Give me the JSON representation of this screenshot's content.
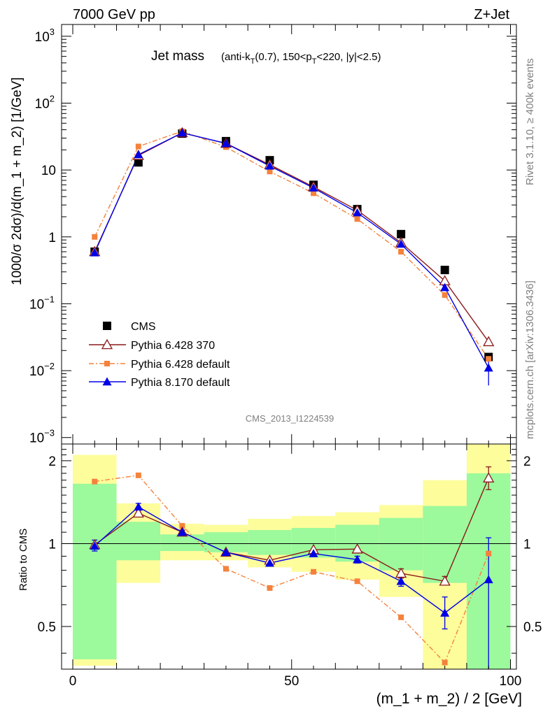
{
  "header": {
    "energy": "7000 GeV pp",
    "process": "Z+Jet"
  },
  "side_texts": {
    "rivet": "Rivet 3.1.10, ≥ 400k events",
    "mcplots": "mcplots.cern.ch [arXiv:1306.3436]"
  },
  "analysis_id": "CMS_2013_I1224539",
  "colors": {
    "cms": "#000000",
    "p6_370": "#8b1a1a",
    "p6_default": "#f5823c",
    "p8_default": "#0000e6",
    "band_inner": "#9cf99c",
    "band_outer": "#fdfd9c"
  },
  "chart_data": [
    {
      "type": "line",
      "title_main": "Jet mass",
      "title_sub": {
        "a": "(anti-k",
        "a_sub": "T",
        "b": "(0.7), 150<p",
        "b_sub": "T",
        "c": "<220, |y|<2.5)"
      },
      "ylabel": "1000/σ 2dσ)/d(m_1 + m_2) [1/GeV]",
      "xlim": [
        0,
        100
      ],
      "ylim": [
        0.0008,
        1500
      ],
      "log_y": true,
      "y_ticks": [
        {
          "value": 0.001,
          "base": "10",
          "exp": "−3"
        },
        {
          "value": 0.01,
          "base": "10",
          "exp": "−2"
        },
        {
          "value": 0.1,
          "base": "10",
          "exp": "−1"
        },
        {
          "value": 1,
          "base": "1",
          "exp": ""
        },
        {
          "value": 10,
          "base": "10",
          "exp": ""
        },
        {
          "value": 100,
          "base": "10",
          "exp": "2"
        },
        {
          "value": 1000,
          "base": "10",
          "exp": "3"
        }
      ],
      "x": [
        5,
        15,
        25,
        35,
        45,
        55,
        65,
        75,
        85,
        95
      ],
      "series": [
        {
          "name": "CMS",
          "key": "cms",
          "values": [
            0.6,
            13,
            35,
            27,
            14,
            6,
            2.6,
            1.1,
            0.32,
            0.016
          ]
        },
        {
          "name": "Pythia 6.428 370",
          "key": "p6_370",
          "values": [
            0.6,
            16.5,
            36,
            25,
            12,
            5.6,
            2.5,
            0.82,
            0.22,
            0.027
          ]
        },
        {
          "name": "Pythia 6.428 default",
          "key": "p6_default",
          "values": [
            1.0,
            22.5,
            38,
            22,
            9.5,
            4.5,
            1.85,
            0.6,
            0.135,
            0.015
          ]
        },
        {
          "name": "Pythia 8.170 default",
          "key": "p8_default",
          "values": [
            0.58,
            17,
            36,
            25,
            11.5,
            5.4,
            2.3,
            0.78,
            0.175,
            0.011
          ],
          "err_last": [
            0.006,
            0.016
          ]
        }
      ],
      "legend_position": "lower-left"
    },
    {
      "type": "line",
      "ylabel": "Ratio to CMS",
      "xlabel": "(m_1 + m_2) / 2 [GeV]",
      "xlim": [
        0,
        100
      ],
      "ylim": [
        0.35,
        2.3
      ],
      "log_y": true,
      "x_ticks": [
        0,
        50,
        100
      ],
      "y_ticks": [
        0.5,
        1,
        2
      ],
      "x": [
        5,
        15,
        25,
        35,
        45,
        55,
        65,
        75,
        85,
        95
      ],
      "bands": [
        {
          "x0": 0,
          "x1": 10,
          "inner": [
            0.38,
            1.65
          ],
          "outer": [
            0.36,
            2.1
          ]
        },
        {
          "x0": 10,
          "x1": 20,
          "inner": [
            0.87,
            1.2
          ],
          "outer": [
            0.72,
            1.4
          ]
        },
        {
          "x0": 20,
          "x1": 30,
          "inner": [
            0.94,
            1.08
          ],
          "outer": [
            0.87,
            1.18
          ]
        },
        {
          "x0": 30,
          "x1": 40,
          "inner": [
            0.93,
            1.1
          ],
          "outer": [
            0.87,
            1.17
          ]
        },
        {
          "x0": 40,
          "x1": 50,
          "inner": [
            0.91,
            1.12
          ],
          "outer": [
            0.82,
            1.23
          ]
        },
        {
          "x0": 50,
          "x1": 60,
          "inner": [
            0.89,
            1.14
          ],
          "outer": [
            0.79,
            1.26
          ]
        },
        {
          "x0": 60,
          "x1": 70,
          "inner": [
            0.86,
            1.17
          ],
          "outer": [
            0.74,
            1.3
          ]
        },
        {
          "x0": 70,
          "x1": 80,
          "inner": [
            0.8,
            1.24
          ],
          "outer": [
            0.64,
            1.38
          ]
        },
        {
          "x0": 80,
          "x1": 90,
          "inner": [
            0.72,
            1.37
          ],
          "outer": [
            0.35,
            1.7
          ]
        },
        {
          "x0": 90,
          "x1": 100,
          "inner": [
            0.35,
            1.8
          ],
          "outer": [
            0.35,
            2.3
          ]
        }
      ],
      "series": [
        {
          "name": "Pythia 6.428 370",
          "key": "p6_370",
          "values": [
            0.99,
            1.29,
            1.1,
            0.93,
            0.87,
            0.95,
            0.955,
            0.78,
            0.73,
            1.73
          ],
          "err": [
            null,
            null,
            null,
            null,
            null,
            null,
            null,
            [
              0.75,
              0.81
            ],
            [
              0.71,
              0.76
            ],
            [
              1.57,
              1.9
            ]
          ]
        },
        {
          "name": "Pythia 6.428 default",
          "key": "p6_default",
          "values": [
            1.68,
            1.77,
            1.16,
            0.81,
            0.69,
            0.79,
            0.73,
            0.54,
            0.37,
            0.92
          ]
        },
        {
          "name": "Pythia 8.170 default",
          "key": "p8_default",
          "values": [
            0.98,
            1.36,
            1.1,
            0.93,
            0.85,
            0.92,
            0.875,
            0.73,
            0.56,
            0.74
          ],
          "err": [
            [
              0.94,
              1.03
            ],
            [
              1.32,
              1.4
            ],
            [
              1.08,
              1.12
            ],
            null,
            [
              0.83,
              0.87
            ],
            [
              0.9,
              0.94
            ],
            [
              0.85,
              0.9
            ],
            [
              0.7,
              0.77
            ],
            [
              0.49,
              0.64
            ],
            [
              0.35,
              1.05
            ]
          ]
        }
      ]
    }
  ]
}
